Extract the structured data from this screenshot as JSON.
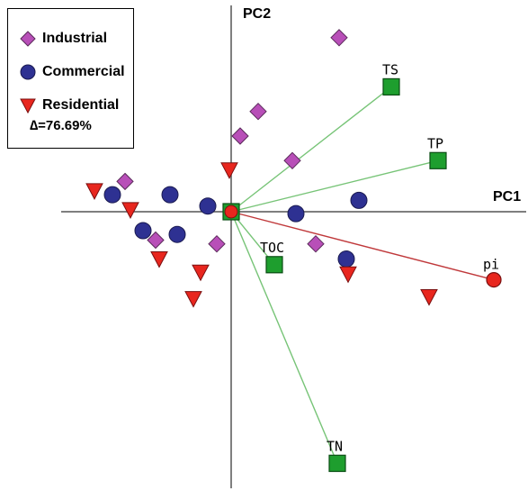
{
  "chart_data": {
    "type": "scatter",
    "subtype": "pca-biplot",
    "axes": {
      "x": {
        "label": "PC1",
        "range": [
          -1.0,
          1.6
        ]
      },
      "y": {
        "label": "PC2",
        "range": [
          -1.4,
          1.1
        ]
      },
      "grid": false
    },
    "legend": {
      "placement": "top-left",
      "entries": [
        {
          "name": "Industrial",
          "marker": "diamond",
          "color": "#B84FB8"
        },
        {
          "name": "Commercial",
          "marker": "circle",
          "color": "#2E3192"
        },
        {
          "name": "Residential",
          "marker": "triangle-down",
          "color": "#E8261E"
        }
      ],
      "stat": "∆=76.69%"
    },
    "series": [
      {
        "name": "Industrial",
        "marker": "diamond",
        "color": "#B84FB8",
        "points": [
          {
            "x": 0.6,
            "y": 0.92
          },
          {
            "x": 0.15,
            "y": 0.53
          },
          {
            "x": 0.05,
            "y": 0.4
          },
          {
            "x": 0.34,
            "y": 0.27
          },
          {
            "x": -0.59,
            "y": 0.16
          },
          {
            "x": -0.42,
            "y": -0.15
          },
          {
            "x": -0.08,
            "y": -0.17
          },
          {
            "x": 0.47,
            "y": -0.17
          }
        ]
      },
      {
        "name": "Commercial",
        "marker": "circle",
        "color": "#2E3192",
        "points": [
          {
            "x": -0.66,
            "y": 0.09
          },
          {
            "x": -0.34,
            "y": 0.09
          },
          {
            "x": -0.13,
            "y": 0.03
          },
          {
            "x": 0.71,
            "y": 0.06
          },
          {
            "x": 0.36,
            "y": -0.01
          },
          {
            "x": -0.49,
            "y": -0.1
          },
          {
            "x": -0.3,
            "y": -0.12
          },
          {
            "x": 0.64,
            "y": -0.25
          }
        ]
      },
      {
        "name": "Residential",
        "marker": "triangle-down",
        "color": "#E8261E",
        "points": [
          {
            "x": -0.01,
            "y": 0.22
          },
          {
            "x": -0.76,
            "y": 0.11
          },
          {
            "x": -0.56,
            "y": 0.01
          },
          {
            "x": -0.4,
            "y": -0.25
          },
          {
            "x": -0.17,
            "y": -0.32
          },
          {
            "x": -0.21,
            "y": -0.46
          },
          {
            "x": 0.65,
            "y": -0.33
          },
          {
            "x": 1.1,
            "y": -0.45
          }
        ]
      }
    ],
    "vectors": [
      {
        "label": "TS",
        "x": 0.89,
        "y": 0.66,
        "marker": "square",
        "color": "#1E9E2E"
      },
      {
        "label": "TP",
        "x": 1.15,
        "y": 0.27,
        "marker": "square",
        "color": "#1E9E2E"
      },
      {
        "label": "TOC",
        "x": 0.24,
        "y": -0.28,
        "marker": "square",
        "color": "#1E9E2E"
      },
      {
        "label": "TN",
        "x": 0.59,
        "y": -1.33,
        "marker": "square",
        "color": "#1E9E2E"
      },
      {
        "label": "pi",
        "x": 1.46,
        "y": -0.36,
        "marker": "circle",
        "color": "#E8261E"
      }
    ],
    "line_colors": {
      "environment": "#77C477",
      "pi": "#C0393B"
    },
    "origin_marker": {
      "shape": "square+circle",
      "fill": "#E8261E",
      "border": "#1E9E2E"
    }
  }
}
